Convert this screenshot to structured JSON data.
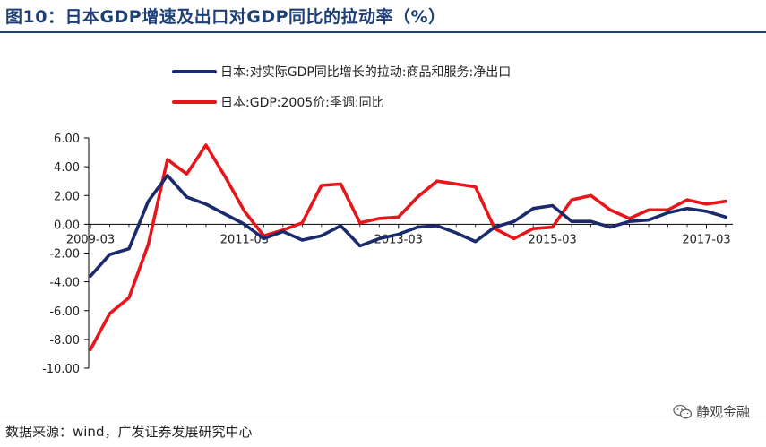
{
  "header": {
    "title": "图10：日本GDP增速及出口对GDP同比的拉动率（%）"
  },
  "footer": {
    "source": "数据来源：wind，广发证券发展研究中心",
    "watermark": "静观金融",
    "watermark_icon": "wechat-icon"
  },
  "chart_data": {
    "type": "line",
    "title": "",
    "xlabel": "",
    "ylabel": "",
    "ylim": [
      -10,
      6
    ],
    "yticks": [
      "6.00",
      "4.00",
      "2.00",
      "0.00",
      "-2.00",
      "-4.00",
      "-6.00",
      "-8.00",
      "-10.00"
    ],
    "xtick_labels": [
      "2009-03",
      "2011-03",
      "2013-03",
      "2015-03",
      "2017-03"
    ],
    "xtick_indices": [
      0,
      8,
      16,
      24,
      32
    ],
    "x": [
      "2009-03",
      "2009-06",
      "2009-09",
      "2009-12",
      "2010-03",
      "2010-06",
      "2010-09",
      "2010-12",
      "2011-03",
      "2011-06",
      "2011-09",
      "2011-12",
      "2012-03",
      "2012-06",
      "2012-09",
      "2012-12",
      "2013-03",
      "2013-06",
      "2013-09",
      "2013-12",
      "2014-03",
      "2014-06",
      "2014-09",
      "2014-12",
      "2015-03",
      "2015-06",
      "2015-09",
      "2015-12",
      "2016-03",
      "2016-06",
      "2016-09",
      "2016-12",
      "2017-03",
      "2017-06"
    ],
    "legend_position": "top",
    "grid": false,
    "series": [
      {
        "name": "日本:对实际GDP同比增长的拉动:商品和服务:净出口",
        "color": "#1a2a6c",
        "values": [
          -3.6,
          -2.1,
          -1.7,
          1.6,
          3.4,
          1.9,
          1.4,
          0.7,
          0.0,
          -1.0,
          -0.5,
          -1.1,
          -0.8,
          -0.1,
          -1.5,
          -1.0,
          -0.7,
          -0.2,
          -0.1,
          -0.6,
          -1.2,
          -0.2,
          0.2,
          1.1,
          1.3,
          0.2,
          0.2,
          -0.2,
          0.2,
          0.3,
          0.8,
          1.1,
          0.9,
          0.5
        ]
      },
      {
        "name": "日本:GDP:2005价:季调:同比",
        "color": "#e8151b",
        "values": [
          -8.7,
          -6.2,
          -5.1,
          -1.4,
          4.5,
          3.5,
          5.5,
          3.3,
          0.9,
          -0.8,
          -0.4,
          0.1,
          2.7,
          2.8,
          0.1,
          0.4,
          0.5,
          1.9,
          3.0,
          2.8,
          2.6,
          -0.3,
          -1.0,
          -0.3,
          -0.2,
          1.7,
          2.0,
          1.0,
          0.4,
          1.0,
          1.0,
          1.7,
          1.4,
          1.6
        ]
      }
    ]
  }
}
